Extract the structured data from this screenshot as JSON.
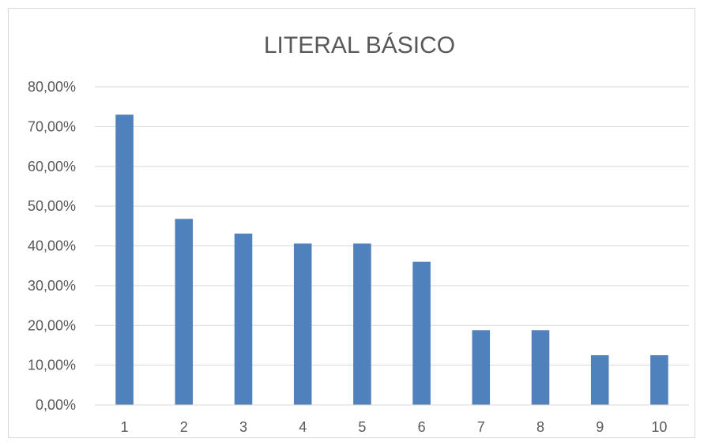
{
  "chart_data": {
    "type": "bar",
    "title": "LITERAL BÁSICO",
    "xlabel": "",
    "ylabel": "",
    "categories": [
      "1",
      "2",
      "3",
      "4",
      "5",
      "6",
      "7",
      "8",
      "9",
      "10"
    ],
    "values": [
      73.0,
      46.8,
      43.1,
      40.6,
      40.6,
      36.0,
      18.8,
      18.8,
      12.5,
      12.5
    ],
    "value_unit": "%",
    "ylim": [
      0,
      80
    ],
    "yticks": [
      "0,00%",
      "10,00%",
      "20,00%",
      "30,00%",
      "40,00%",
      "50,00%",
      "60,00%",
      "70,00%",
      "80,00%"
    ],
    "grid": true,
    "legend": "none",
    "bar_color": "#4f81bd",
    "grid_color": "#d9d9d9"
  }
}
